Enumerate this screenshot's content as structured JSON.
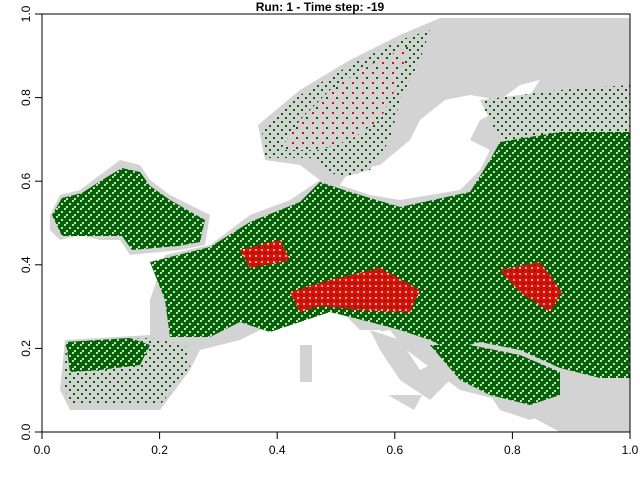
{
  "chart_data": {
    "type": "image",
    "title": "Run: 1  -  Time step: -19",
    "xlim": [
      0,
      1
    ],
    "ylim": [
      0,
      1
    ],
    "xticks": [
      {
        "value": 0,
        "label": "0.0"
      },
      0.2,
      0.4,
      0.6,
      0.8,
      {
        "value": 1,
        "label": "1.0"
      }
    ],
    "yticks": [
      {
        "value": 0,
        "label": "0.0"
      },
      0.2,
      0.4,
      0.6,
      0.8,
      {
        "value": 1,
        "label": "1.0"
      }
    ]
  }
}
